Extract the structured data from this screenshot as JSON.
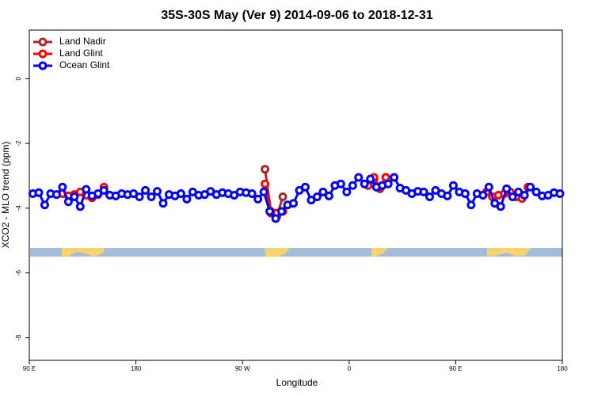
{
  "chart_data": {
    "type": "line",
    "title": "35S-30S May (Ver 9)   2014-09-06 to 2018-12-31",
    "x_label": "Longitude",
    "y_label": "XCO2 - MLO trend (ppm)",
    "xlim": [
      90,
      540
    ],
    "ylim": [
      -8.7,
      1.5
    ],
    "xticks": [
      {
        "value": 90,
        "label": "90 E"
      },
      180,
      {
        "value": 270,
        "label": "90 W"
      },
      {
        "value": 360,
        "label": "0"
      },
      {
        "value": 450,
        "label": "90 E"
      },
      {
        "value": 540,
        "label": "180"
      }
    ],
    "yticks": [
      0,
      -2,
      -4,
      -6,
      -8
    ],
    "legend": "upper left",
    "series": [
      {
        "name": "Land Nadir",
        "color": "#a52a2a",
        "x": [
          289,
          294,
          299,
          304,
          309,
          381,
          386,
          391
        ],
        "values": [
          -2.8,
          -4.1,
          -4.25,
          -3.65,
          null,
          -3.1,
          -3.4,
          -3.05
        ]
      },
      {
        "name": "Land Glint",
        "color": "#ff0000",
        "x": [
          118,
          123,
          128,
          133,
          138,
          143,
          148,
          153,
          158,
          289,
          294,
          299,
          304,
          309,
          376,
          381,
          386,
          391,
          396,
          476,
          481,
          486,
          491,
          496,
          501,
          506,
          511
        ],
        "values": [
          -3.55,
          -3.62,
          -3.58,
          -3.5,
          -3.6,
          -3.68,
          -3.58,
          -3.35,
          null,
          -3.25,
          -4.15,
          -4.15,
          -4.1,
          null,
          -3.3,
          -3.05,
          -3.35,
          -3.05,
          null,
          -3.5,
          -3.65,
          -3.6,
          -3.55,
          -3.5,
          -3.65,
          -3.7,
          -3.35
        ]
      },
      {
        "name": "Ocean Glint",
        "color": "#0000ff",
        "x": [
          93,
          98,
          103,
          108,
          113,
          118,
          123,
          128,
          133,
          138,
          143,
          148,
          153,
          158,
          163,
          168,
          173,
          178,
          183,
          188,
          193,
          198,
          203,
          208,
          213,
          218,
          223,
          228,
          233,
          238,
          243,
          248,
          253,
          258,
          263,
          268,
          273,
          278,
          283,
          288,
          293,
          298,
          303,
          308,
          313,
          318,
          323,
          328,
          333,
          338,
          343,
          348,
          353,
          358,
          363,
          368,
          373,
          378,
          383,
          388,
          393,
          398,
          403,
          408,
          413,
          418,
          423,
          428,
          433,
          438,
          443,
          448,
          453,
          458,
          463,
          468,
          473,
          478,
          483,
          488,
          493,
          498,
          503,
          508,
          513,
          518,
          523,
          528,
          533,
          538
        ],
        "values": [
          -3.55,
          -3.52,
          -3.9,
          -3.55,
          -3.58,
          -3.35,
          -3.8,
          -3.65,
          -3.95,
          -3.42,
          -3.62,
          -3.55,
          -3.45,
          -3.6,
          -3.62,
          -3.55,
          -3.58,
          -3.55,
          -3.65,
          -3.45,
          -3.65,
          -3.48,
          -3.85,
          -3.58,
          -3.62,
          -3.55,
          -3.72,
          -3.5,
          -3.6,
          -3.58,
          -3.48,
          -3.58,
          -3.52,
          -3.55,
          -3.6,
          -3.5,
          -3.52,
          -3.55,
          -3.72,
          -3.5,
          -4.1,
          -4.32,
          -4.1,
          -3.9,
          -3.85,
          -3.45,
          -3.35,
          -3.75,
          -3.65,
          -3.5,
          -3.62,
          -3.3,
          -3.25,
          -3.5,
          -3.3,
          -3.05,
          -3.25,
          -3.1,
          -3.35,
          -3.3,
          -3.25,
          -3.05,
          -3.38,
          -3.45,
          -3.55,
          -3.48,
          -3.5,
          -3.65,
          -3.45,
          -3.55,
          -3.62,
          -3.3,
          -3.5,
          -3.55,
          -3.9,
          -3.55,
          -3.6,
          -3.35,
          -3.85,
          -3.95,
          -3.4,
          -3.65,
          -3.5,
          -3.6,
          -3.35,
          -3.5,
          -3.62,
          -3.6,
          -3.52,
          -3.55
        ]
      }
    ]
  }
}
